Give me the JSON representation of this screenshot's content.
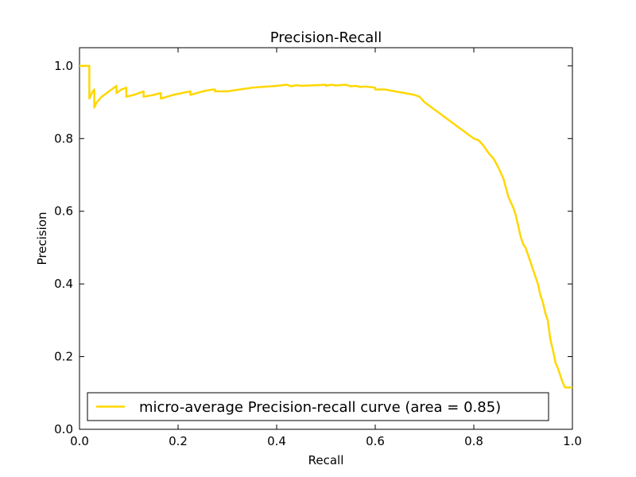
{
  "chart_data": {
    "type": "line",
    "title": "Precision-Recall",
    "xlabel": "Recall",
    "ylabel": "Precision",
    "xlim": [
      0.0,
      1.0
    ],
    "ylim": [
      0.0,
      1.05
    ],
    "x_ticks": [
      "0.0",
      "0.2",
      "0.4",
      "0.6",
      "0.8",
      "1.0"
    ],
    "y_ticks": [
      "0.0",
      "0.2",
      "0.4",
      "0.6",
      "0.8",
      "1.0"
    ],
    "grid": false,
    "legend_position": "lower-center",
    "series": [
      {
        "name": "micro-average Precision-recall curve (area = 0.85)",
        "color": "#FFD700",
        "x": [
          0.0,
          0.02,
          0.02,
          0.025,
          0.03,
          0.03,
          0.035,
          0.045,
          0.06,
          0.075,
          0.075,
          0.085,
          0.095,
          0.095,
          0.11,
          0.13,
          0.13,
          0.15,
          0.165,
          0.165,
          0.19,
          0.225,
          0.225,
          0.25,
          0.27,
          0.275,
          0.275,
          0.3,
          0.35,
          0.4,
          0.42,
          0.43,
          0.44,
          0.45,
          0.5,
          0.5,
          0.51,
          0.52,
          0.54,
          0.55,
          0.56,
          0.57,
          0.58,
          0.6,
          0.6,
          0.62,
          0.64,
          0.66,
          0.68,
          0.69,
          0.7,
          0.71,
          0.72,
          0.73,
          0.74,
          0.75,
          0.76,
          0.77,
          0.78,
          0.79,
          0.8,
          0.81,
          0.82,
          0.83,
          0.84,
          0.85,
          0.86,
          0.87,
          0.88,
          0.885,
          0.89,
          0.895,
          0.9,
          0.905,
          0.91,
          0.915,
          0.92,
          0.925,
          0.93,
          0.935,
          0.94,
          0.945,
          0.95,
          0.955,
          0.96,
          0.965,
          0.965,
          0.97,
          0.975,
          0.98,
          0.985,
          0.99,
          1.0
        ],
        "y": [
          1.0,
          1.0,
          0.91,
          0.925,
          0.935,
          0.885,
          0.9,
          0.915,
          0.93,
          0.945,
          0.925,
          0.935,
          0.94,
          0.915,
          0.92,
          0.93,
          0.915,
          0.92,
          0.925,
          0.91,
          0.92,
          0.93,
          0.92,
          0.93,
          0.935,
          0.935,
          0.93,
          0.93,
          0.94,
          0.945,
          0.948,
          0.944,
          0.947,
          0.945,
          0.948,
          0.945,
          0.948,
          0.946,
          0.948,
          0.944,
          0.945,
          0.942,
          0.943,
          0.94,
          0.935,
          0.935,
          0.93,
          0.925,
          0.92,
          0.915,
          0.9,
          0.89,
          0.88,
          0.87,
          0.86,
          0.85,
          0.84,
          0.83,
          0.82,
          0.81,
          0.8,
          0.795,
          0.78,
          0.76,
          0.745,
          0.72,
          0.69,
          0.64,
          0.61,
          0.59,
          0.56,
          0.53,
          0.51,
          0.5,
          0.48,
          0.46,
          0.44,
          0.42,
          0.4,
          0.37,
          0.35,
          0.32,
          0.3,
          0.25,
          0.22,
          0.19,
          0.185,
          0.17,
          0.15,
          0.13,
          0.115,
          0.115,
          0.115
        ]
      }
    ],
    "legend_entries": [
      "micro-average Precision-recall curve (area = 0.85)"
    ]
  }
}
